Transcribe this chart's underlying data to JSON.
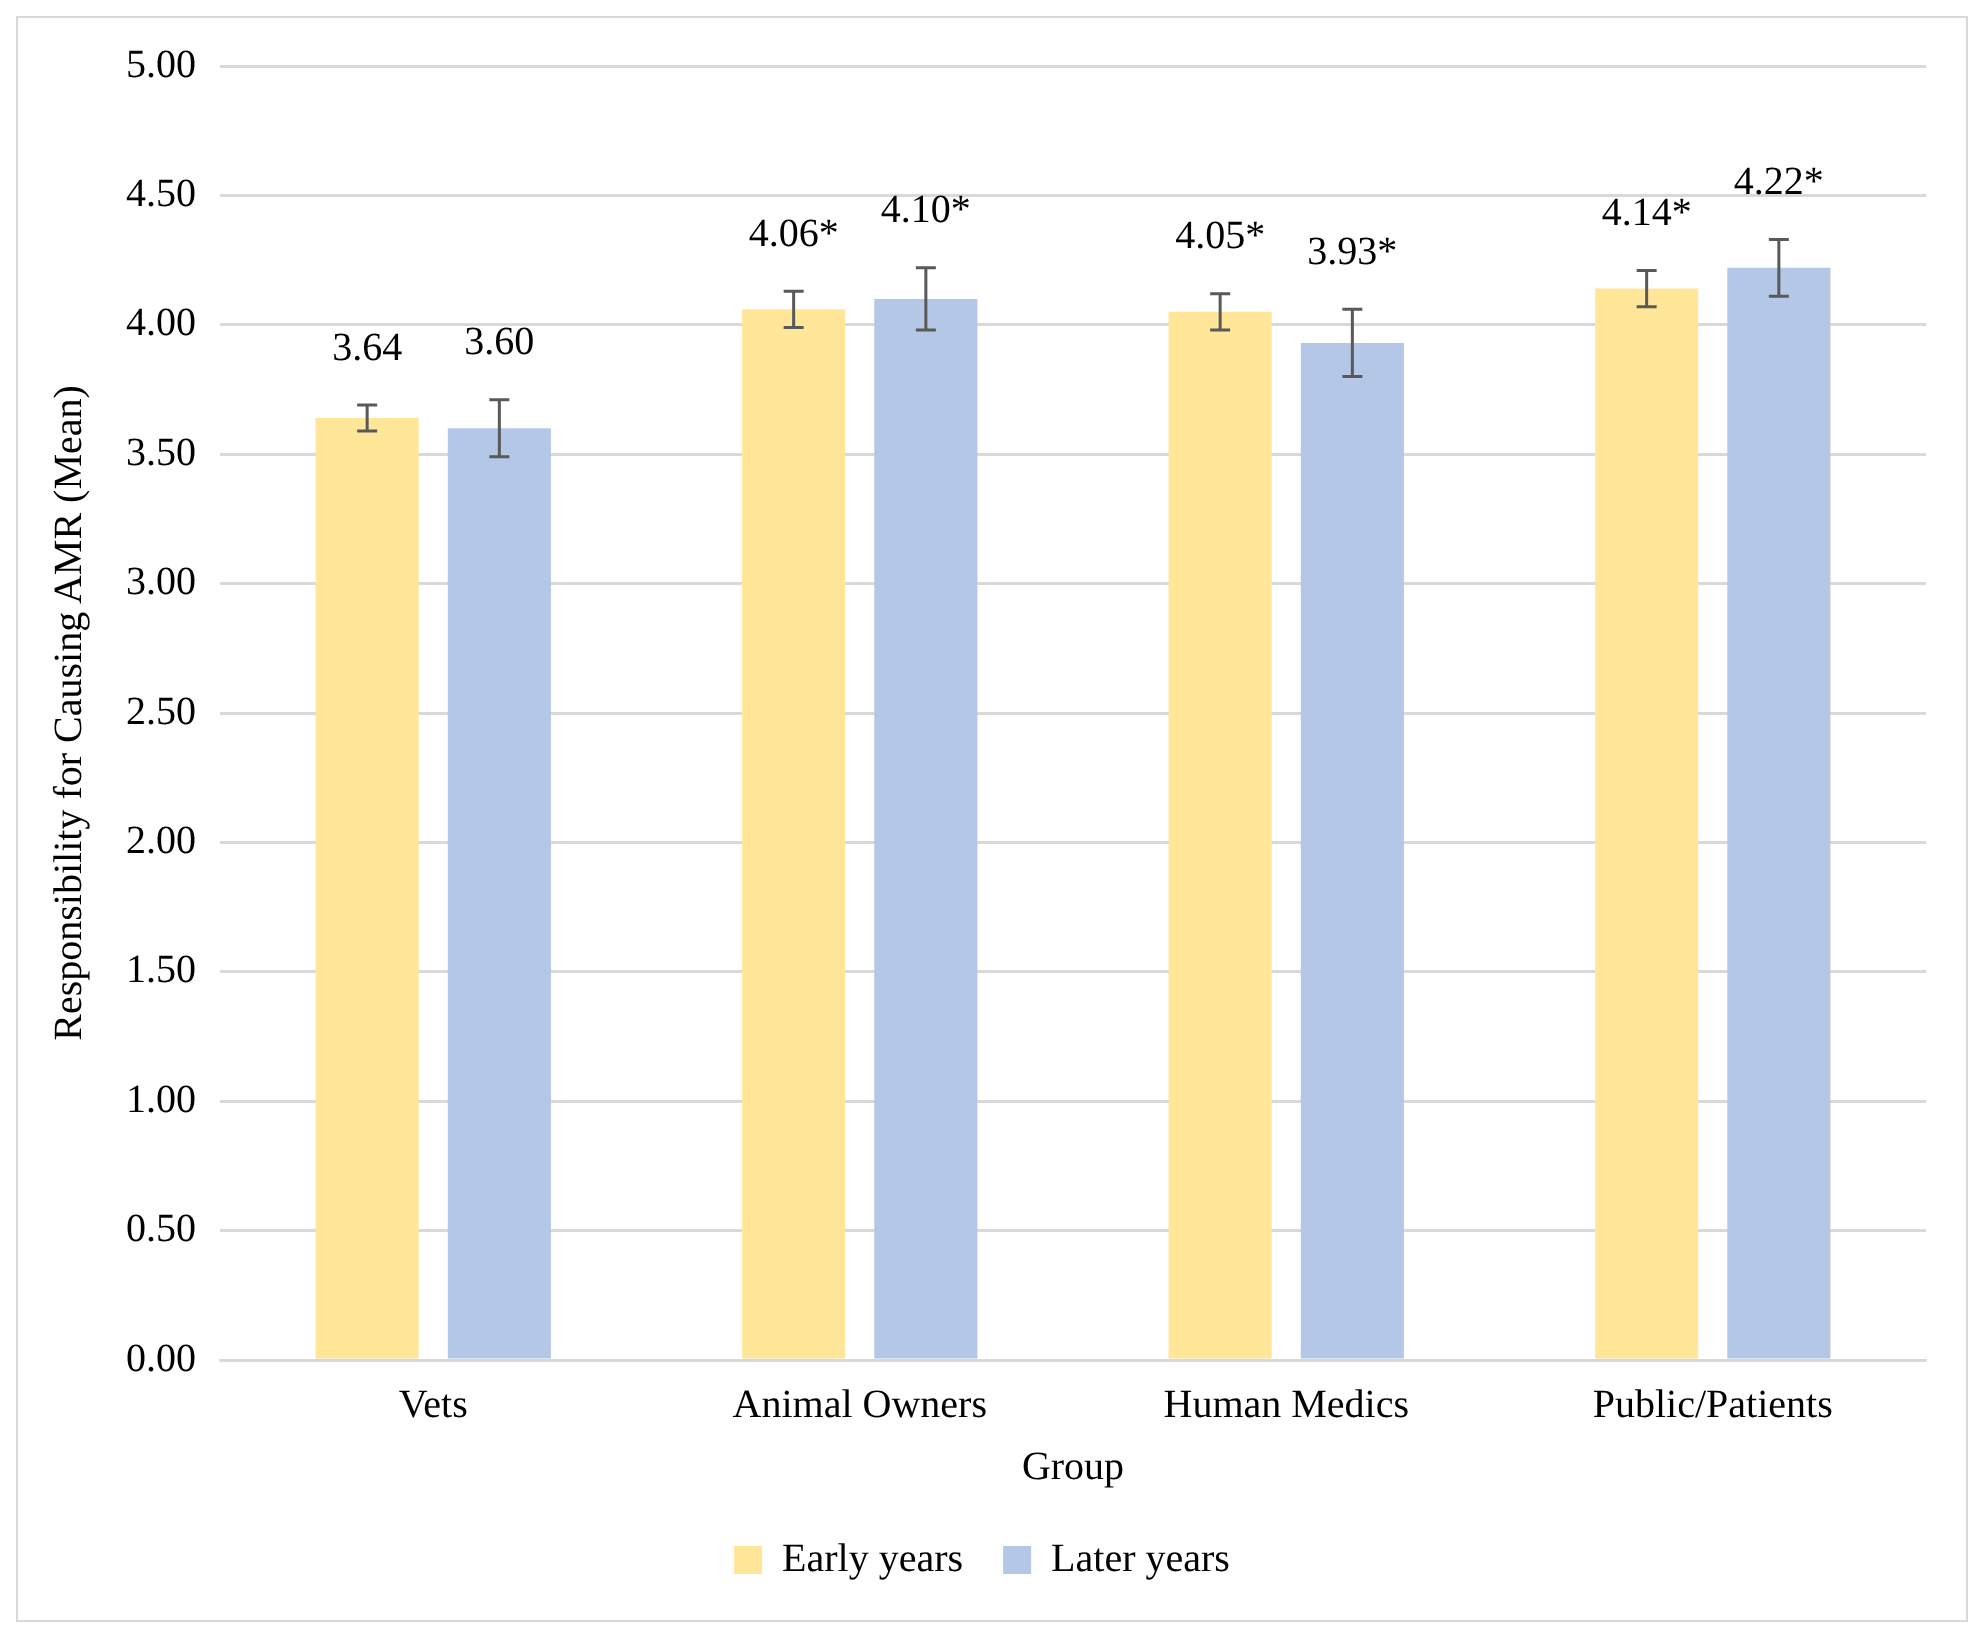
{
  "chart_data": {
    "type": "bar",
    "xlabel": "Group",
    "ylabel": "Responsibility for Causing AMR (Mean)",
    "categories": [
      "Vets",
      "Animal Owners",
      "Human Medics",
      "Public/Patients"
    ],
    "series": [
      {
        "name": "Early years",
        "color": "#ffe699",
        "values": [
          3.64,
          4.06,
          4.05,
          4.14
        ],
        "errors": [
          0.05,
          0.07,
          0.07,
          0.07
        ],
        "value_labels": [
          "3.64",
          "4.06*",
          "4.05*",
          "4.14*"
        ]
      },
      {
        "name": "Later years",
        "color": "#b4c7e7",
        "values": [
          3.6,
          4.1,
          3.93,
          4.22
        ],
        "errors": [
          0.11,
          0.12,
          0.13,
          0.11
        ],
        "value_labels": [
          "3.60",
          "4.10*",
          "3.93*",
          "4.22*"
        ]
      }
    ],
    "ylim": [
      0,
      5
    ],
    "yticks": [
      {
        "value": 0,
        "label": "0.00"
      },
      {
        "value": 0.5,
        "label": "0.50"
      },
      {
        "value": 1,
        "label": "1.00"
      },
      {
        "value": 1.5,
        "label": "1.50"
      },
      {
        "value": 2,
        "label": "2.00"
      },
      {
        "value": 2.5,
        "label": "2.50"
      },
      {
        "value": 3,
        "label": "3.00"
      },
      {
        "value": 3.5,
        "label": "3.50"
      },
      {
        "value": 4,
        "label": "4.00"
      },
      {
        "value": 4.5,
        "label": "4.50"
      },
      {
        "value": 5,
        "label": "5.00"
      }
    ],
    "grid": "y",
    "legend": "bottom"
  }
}
